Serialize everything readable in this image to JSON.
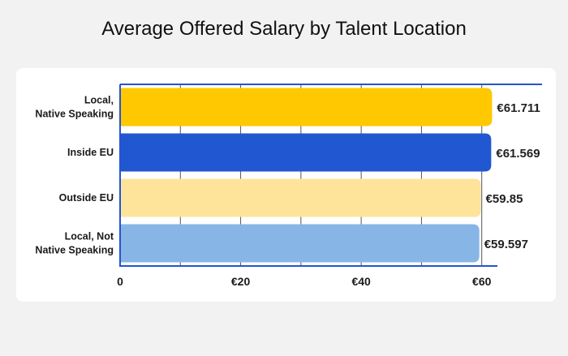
{
  "chart_data": {
    "type": "bar",
    "orientation": "horizontal",
    "title": "Average Offered Salary by Talent Location",
    "categories": [
      [
        "Local,",
        "Native Speaking"
      ],
      [
        "Inside EU"
      ],
      [
        "Outside EU"
      ],
      [
        "Local, Not",
        "Native Speaking"
      ]
    ],
    "values": [
      61.711,
      61.569,
      59.85,
      59.597
    ],
    "value_labels": [
      "€61.711",
      "€61.569",
      "€59.85",
      "€59.597"
    ],
    "bar_colors": [
      "#ffc800",
      "#2157d0",
      "#fde49a",
      "#87b6e6"
    ],
    "xlim": [
      0,
      70
    ],
    "xticks": [
      0,
      20,
      40,
      60
    ],
    "xtick_labels": [
      "0",
      "€20",
      "€40",
      "€60"
    ],
    "grid": true,
    "frame_color": "#2454d0"
  }
}
